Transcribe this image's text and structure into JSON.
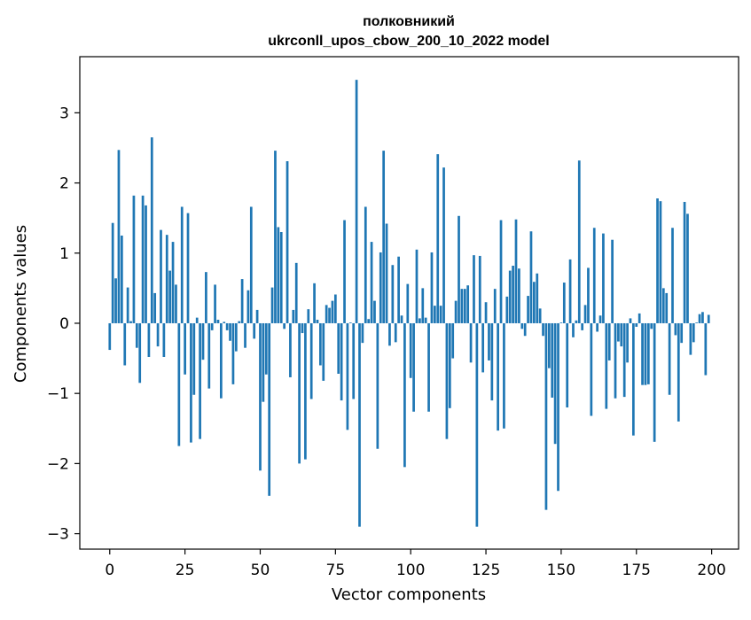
{
  "chart_data": {
    "type": "bar",
    "title_line1": "полковникий",
    "title_line2": "ukrconll_upos_cbow_200_10_2022 model",
    "xlabel": "Vector components",
    "ylabel": "Components values",
    "xlim": [
      -9.95,
      208.95
    ],
    "ylim": [
      -3.22,
      3.8
    ],
    "xticks": [
      0,
      25,
      50,
      75,
      100,
      125,
      150,
      175,
      200
    ],
    "xtick_labels": [
      "0",
      "25",
      "50",
      "75",
      "100",
      "125",
      "150",
      "175",
      "200"
    ],
    "yticks": [
      -3,
      -2,
      -1,
      0,
      1,
      2,
      3
    ],
    "ytick_labels": [
      "−3",
      "−2",
      "−1",
      "0",
      "1",
      "2",
      "3"
    ],
    "grid": false,
    "legend": "none",
    "bar_color": "#1f77b4",
    "x": [
      0,
      1,
      2,
      3,
      4,
      5,
      6,
      7,
      8,
      9,
      10,
      11,
      12,
      13,
      14,
      15,
      16,
      17,
      18,
      19,
      20,
      21,
      22,
      23,
      24,
      25,
      26,
      27,
      28,
      29,
      30,
      31,
      32,
      33,
      34,
      35,
      36,
      37,
      38,
      39,
      40,
      41,
      42,
      43,
      44,
      45,
      46,
      47,
      48,
      49,
      50,
      51,
      52,
      53,
      54,
      55,
      56,
      57,
      58,
      59,
      60,
      61,
      62,
      63,
      64,
      65,
      66,
      67,
      68,
      69,
      70,
      71,
      72,
      73,
      74,
      75,
      76,
      77,
      78,
      79,
      80,
      81,
      82,
      83,
      84,
      85,
      86,
      87,
      88,
      89,
      90,
      91,
      92,
      93,
      94,
      95,
      96,
      97,
      98,
      99,
      100,
      101,
      102,
      103,
      104,
      105,
      106,
      107,
      108,
      109,
      110,
      111,
      112,
      113,
      114,
      115,
      116,
      117,
      118,
      119,
      120,
      121,
      122,
      123,
      124,
      125,
      126,
      127,
      128,
      129,
      130,
      131,
      132,
      133,
      134,
      135,
      136,
      137,
      138,
      139,
      140,
      141,
      142,
      143,
      144,
      145,
      146,
      147,
      148,
      149,
      150,
      151,
      152,
      153,
      154,
      155,
      156,
      157,
      158,
      159,
      160,
      161,
      162,
      163,
      164,
      165,
      166,
      167,
      168,
      169,
      170,
      171,
      172,
      173,
      174,
      175,
      176,
      177,
      178,
      179,
      180,
      181,
      182,
      183,
      184,
      185,
      186,
      187,
      188,
      189,
      190,
      191,
      192,
      193,
      194,
      195,
      196,
      197,
      198,
      199
    ],
    "values": [
      -0.38,
      1.43,
      0.64,
      2.47,
      1.25,
      -0.6,
      0.51,
      0.03,
      1.82,
      -0.35,
      -0.85,
      1.82,
      1.68,
      -0.48,
      2.65,
      0.43,
      -0.33,
      1.33,
      -0.48,
      1.26,
      0.75,
      1.16,
      0.55,
      -1.75,
      1.66,
      -0.73,
      1.57,
      -1.7,
      -1.02,
      0.08,
      -1.65,
      -0.52,
      0.73,
      -0.93,
      -0.1,
      0.55,
      0.05,
      -1.07,
      0.02,
      -0.1,
      -0.25,
      -0.87,
      -0.4,
      0.03,
      0.63,
      -0.35,
      0.47,
      1.66,
      -0.22,
      0.19,
      -2.1,
      -1.12,
      -0.73,
      -2.46,
      0.51,
      2.46,
      1.37,
      1.3,
      -0.08,
      2.31,
      -0.77,
      0.19,
      0.86,
      -2.0,
      -0.14,
      -1.94,
      0.2,
      -1.08,
      0.57,
      0.05,
      -0.6,
      -0.82,
      0.26,
      0.22,
      0.32,
      0.41,
      -0.72,
      -1.1,
      1.47,
      -1.52,
      0.01,
      -1.08,
      3.47,
      -2.9,
      -0.28,
      1.66,
      0.06,
      1.16,
      0.32,
      -1.79,
      1.01,
      2.46,
      1.42,
      -0.32,
      0.83,
      -0.27,
      0.95,
      0.11,
      -2.05,
      0.56,
      -0.78,
      -1.26,
      1.05,
      0.07,
      0.5,
      0.08,
      -1.26,
      1.01,
      0.25,
      2.41,
      0.25,
      2.22,
      -1.65,
      -1.21,
      -0.5,
      0.32,
      1.53,
      0.49,
      0.49,
      0.54,
      -0.56,
      0.97,
      -2.9,
      0.96,
      -0.7,
      0.3,
      -0.53,
      -1.1,
      0.49,
      -1.53,
      1.47,
      -1.5,
      0.38,
      0.75,
      0.82,
      1.48,
      0.78,
      -0.08,
      -0.18,
      0.39,
      1.31,
      0.59,
      0.71,
      0.21,
      -0.18,
      -2.66,
      -0.64,
      -1.06,
      -1.72,
      -2.39,
      0.01,
      0.58,
      -1.2,
      0.91,
      -0.2,
      0.04,
      2.32,
      -0.1,
      0.26,
      0.79,
      -1.32,
      1.36,
      -0.12,
      0.11,
      1.28,
      -1.22,
      -0.53,
      1.19,
      -1.07,
      -0.26,
      -0.33,
      -1.05,
      -0.56,
      0.07,
      -1.6,
      -0.05,
      0.14,
      -0.88,
      -0.88,
      -0.87,
      -0.08,
      -1.69,
      1.78,
      1.74,
      0.5,
      0.43,
      -1.02,
      1.36,
      -0.17,
      -1.4,
      -0.28,
      1.73,
      1.56,
      -0.45,
      -0.27,
      0.01,
      0.13,
      0.16,
      -0.74,
      0.12
    ]
  }
}
